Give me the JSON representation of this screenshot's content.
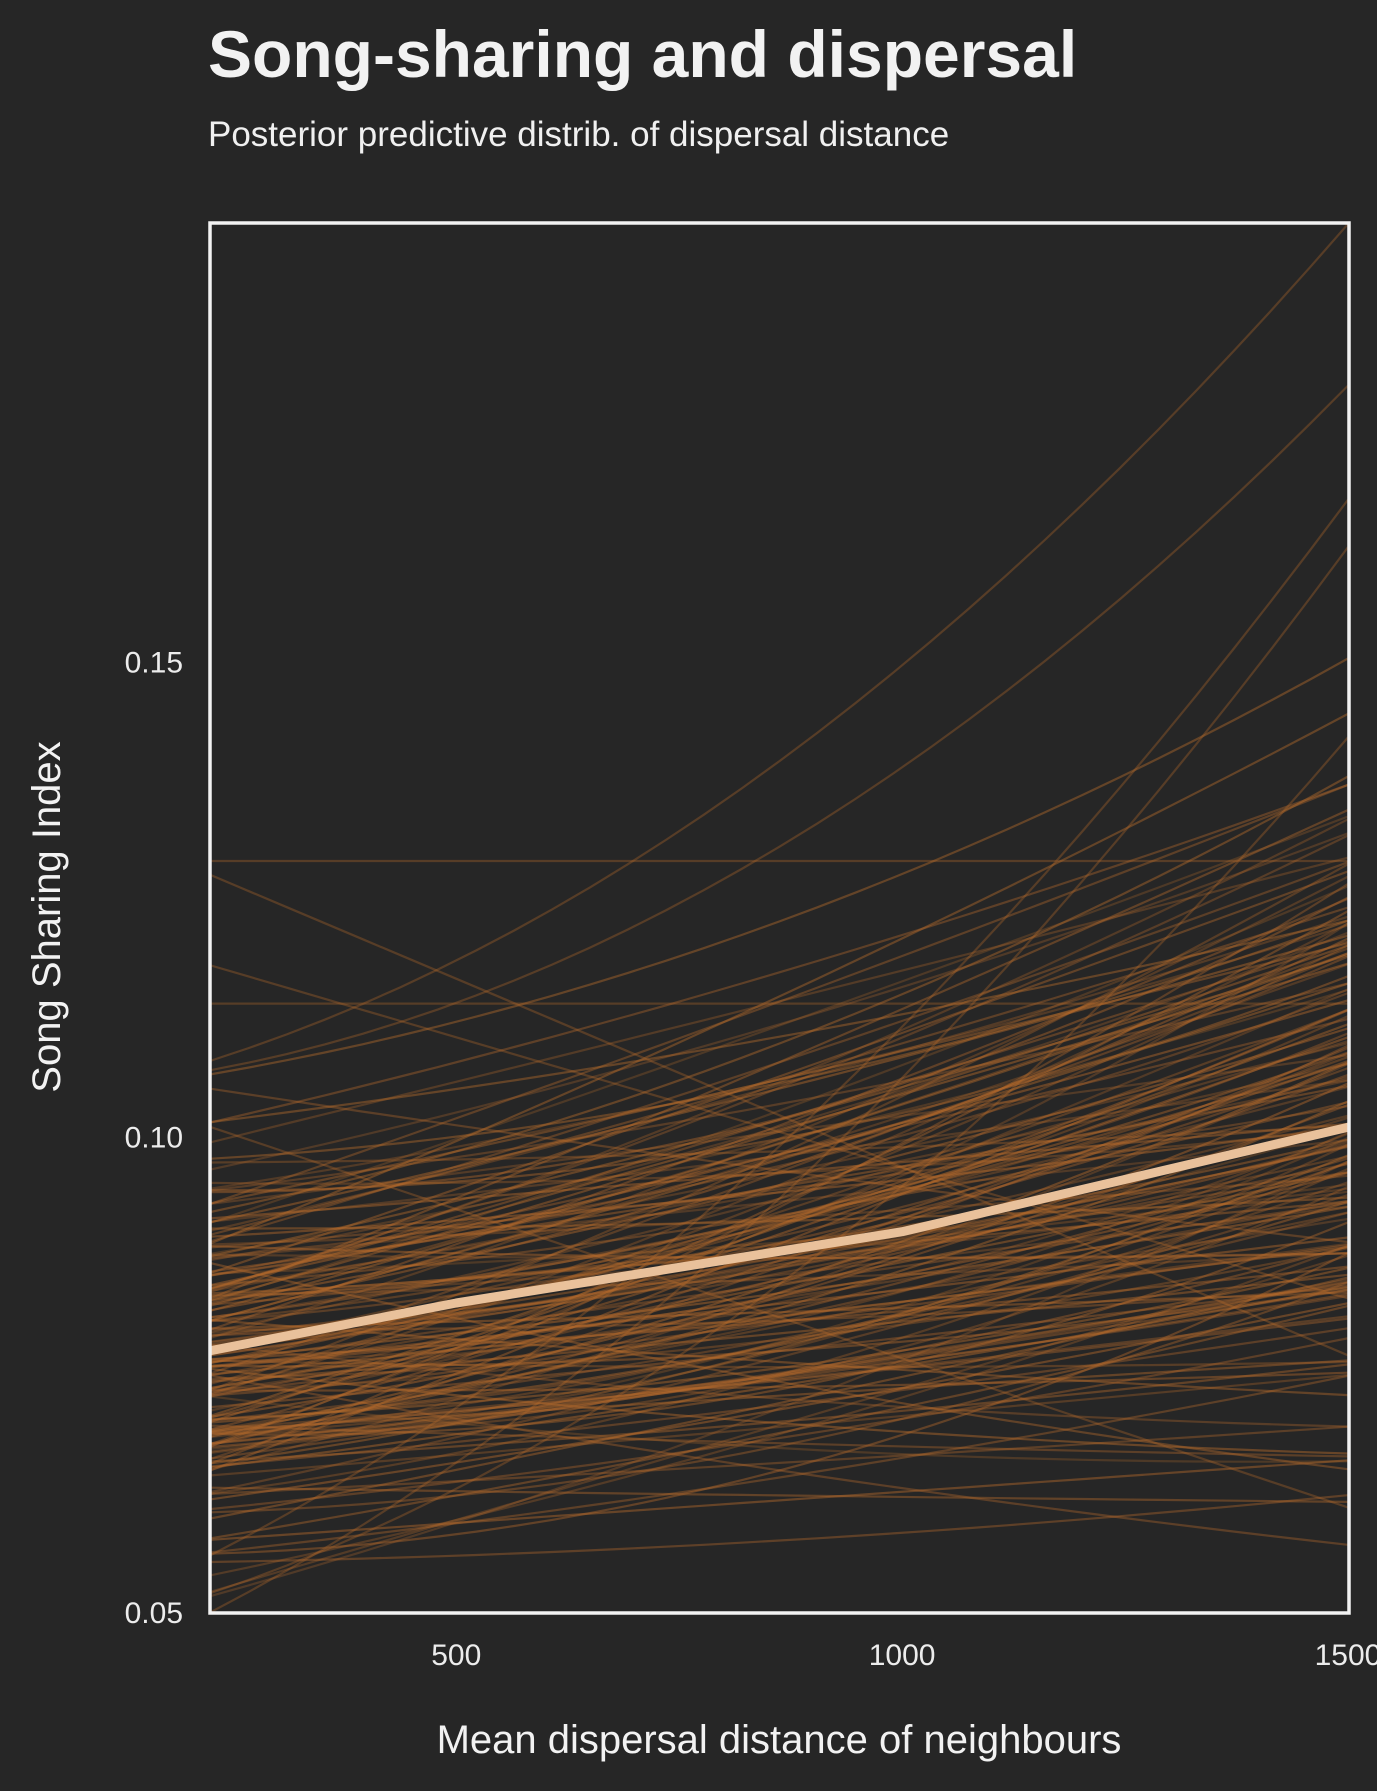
{
  "chart_data": {
    "type": "line",
    "title": "Song-sharing and dispersal",
    "subtitle": "Posterior predictive distrib. of dispersal distance",
    "xlabel": "Mean dispersal distance of neighbours",
    "ylabel": "Song Sharing Index",
    "xlim": [
      225,
      1500
    ],
    "ylim": [
      0.05,
      0.196
    ],
    "xticks": [
      500,
      1000,
      1500
    ],
    "xtick_labels": [
      "500",
      "1000",
      "1500"
    ],
    "yticks": [
      0.05,
      0.1,
      0.15
    ],
    "ytick_labels": [
      "0.05",
      "0.10",
      "0.15"
    ],
    "grid": false,
    "legend": "none",
    "colors": {
      "background": "#262626",
      "draws": "#b56a2c",
      "mean": "#e9c19b",
      "frame": "#f2f2f2"
    },
    "mean_curve": {
      "x": [
        225,
        500,
        1000,
        1500
      ],
      "y": [
        0.0775,
        0.0825,
        0.09,
        0.101
      ]
    },
    "posterior_draws": {
      "x": [
        225,
        1500
      ],
      "count": 180,
      "highlighted_draws": [
        {
          "y": [
            0.129,
            0.129
          ]
        },
        {
          "y": [
            0.1275,
            0.077
          ]
        },
        {
          "y": [
            0.118,
            0.083
          ]
        },
        {
          "y": [
            0.114,
            0.114
          ]
        },
        {
          "y": [
            0.108,
            0.196
          ]
        },
        {
          "y": [
            0.107,
            0.179
          ]
        },
        {
          "y": [
            0.056,
            0.167
          ]
        },
        {
          "y": [
            0.052,
            0.142
          ]
        },
        {
          "y": [
            0.05,
            0.162
          ]
        },
        {
          "y": [
            0.101,
            0.061
          ]
        }
      ]
    }
  }
}
